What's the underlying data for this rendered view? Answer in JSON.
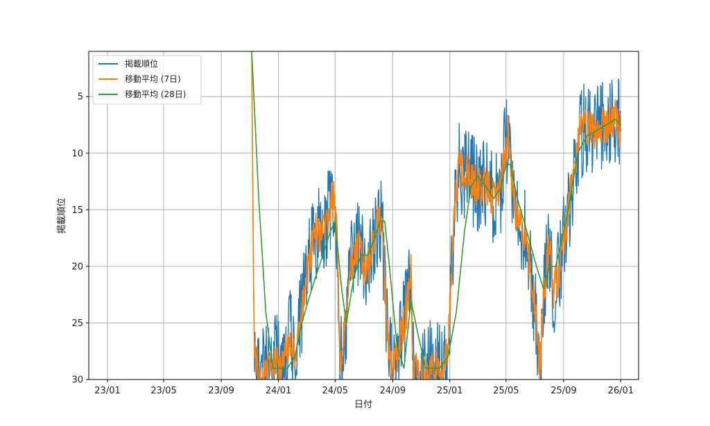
{
  "chart_data": {
    "type": "line",
    "title": "",
    "xlabel": "日付",
    "ylabel": "掲載順位",
    "x_ticks": [
      "23/01",
      "23/05",
      "23/09",
      "24/01",
      "24/05",
      "24/09",
      "25/01",
      "25/05",
      "25/09",
      "26/01"
    ],
    "x_tick_dates": [
      "2023-01-01",
      "2023-05-01",
      "2023-09-01",
      "2024-01-01",
      "2024-05-01",
      "2024-09-01",
      "2025-01-01",
      "2025-05-01",
      "2025-09-01",
      "2026-01-01"
    ],
    "xlim": [
      "2022-11-22",
      "2026-02-08"
    ],
    "y_ticks": [
      5,
      10,
      15,
      20,
      25,
      30
    ],
    "ylim": [
      1,
      30
    ],
    "y_inverted": true,
    "grid": true,
    "legend_position": "top-left",
    "series": [
      {
        "name": "掲載順位",
        "color": "#1f77b4",
        "noise": 4.2,
        "points": [
          [
            "2023-11-05",
            1
          ],
          [
            "2023-11-10",
            27
          ],
          [
            "2023-11-20",
            30
          ],
          [
            "2023-12-10",
            29
          ],
          [
            "2023-12-25",
            28
          ],
          [
            "2024-01-10",
            29
          ],
          [
            "2024-01-25",
            26
          ],
          [
            "2024-02-05",
            28
          ],
          [
            "2024-02-20",
            24
          ],
          [
            "2024-03-05",
            20
          ],
          [
            "2024-03-20",
            17
          ],
          [
            "2024-04-05",
            17
          ],
          [
            "2024-04-20",
            15
          ],
          [
            "2024-04-28",
            14
          ],
          [
            "2024-05-05",
            17
          ],
          [
            "2024-05-12",
            29
          ],
          [
            "2024-05-20",
            26
          ],
          [
            "2024-06-05",
            20
          ],
          [
            "2024-06-20",
            18
          ],
          [
            "2024-07-05",
            21
          ],
          [
            "2024-07-20",
            18
          ],
          [
            "2024-08-01",
            16
          ],
          [
            "2024-08-10",
            17
          ],
          [
            "2024-08-20",
            26
          ],
          [
            "2024-09-01",
            29
          ],
          [
            "2024-09-15",
            27
          ],
          [
            "2024-10-01",
            24
          ],
          [
            "2024-10-10",
            20
          ],
          [
            "2024-10-15",
            29
          ],
          [
            "2024-11-01",
            30
          ],
          [
            "2024-11-20",
            29
          ],
          [
            "2024-12-10",
            29
          ],
          [
            "2024-12-28",
            28
          ],
          [
            "2025-01-05",
            20
          ],
          [
            "2025-01-12",
            15
          ],
          [
            "2025-01-20",
            11
          ],
          [
            "2025-02-10",
            12
          ],
          [
            "2025-03-01",
            13
          ],
          [
            "2025-03-20",
            13
          ],
          [
            "2025-04-05",
            14
          ],
          [
            "2025-04-20",
            13
          ],
          [
            "2025-04-28",
            10
          ],
          [
            "2025-05-05",
            8
          ],
          [
            "2025-05-12",
            12
          ],
          [
            "2025-05-20",
            15
          ],
          [
            "2025-06-10",
            17
          ],
          [
            "2025-06-25",
            21
          ],
          [
            "2025-07-05",
            25
          ],
          [
            "2025-07-12",
            29
          ],
          [
            "2025-07-20",
            23
          ],
          [
            "2025-08-01",
            18
          ],
          [
            "2025-08-10",
            22
          ],
          [
            "2025-08-20",
            21
          ],
          [
            "2025-09-05",
            17
          ],
          [
            "2025-09-15",
            14
          ],
          [
            "2025-09-25",
            11
          ],
          [
            "2025-10-05",
            8
          ],
          [
            "2025-10-20",
            8
          ],
          [
            "2025-11-10",
            8
          ],
          [
            "2025-12-01",
            7.5
          ],
          [
            "2025-12-20",
            7
          ],
          [
            "2026-01-01",
            8
          ]
        ]
      },
      {
        "name": "移動平均 (7日)",
        "color": "#ff7f0e",
        "noise": 1.8,
        "points": [
          [
            "2023-11-05",
            1
          ],
          [
            "2023-11-10",
            27
          ],
          [
            "2023-11-20",
            30
          ],
          [
            "2023-12-10",
            29
          ],
          [
            "2023-12-25",
            28
          ],
          [
            "2024-01-10",
            29
          ],
          [
            "2024-01-25",
            26
          ],
          [
            "2024-02-05",
            28
          ],
          [
            "2024-02-20",
            24
          ],
          [
            "2024-03-05",
            20
          ],
          [
            "2024-03-20",
            17
          ],
          [
            "2024-04-05",
            17
          ],
          [
            "2024-04-20",
            15
          ],
          [
            "2024-04-28",
            14
          ],
          [
            "2024-05-05",
            17
          ],
          [
            "2024-05-12",
            29
          ],
          [
            "2024-05-20",
            26
          ],
          [
            "2024-06-05",
            20
          ],
          [
            "2024-06-20",
            18
          ],
          [
            "2024-07-05",
            21
          ],
          [
            "2024-07-20",
            18
          ],
          [
            "2024-08-01",
            16
          ],
          [
            "2024-08-10",
            17
          ],
          [
            "2024-08-20",
            26
          ],
          [
            "2024-09-01",
            29
          ],
          [
            "2024-09-15",
            27
          ],
          [
            "2024-10-01",
            24
          ],
          [
            "2024-10-10",
            20
          ],
          [
            "2024-10-15",
            29
          ],
          [
            "2024-11-01",
            30
          ],
          [
            "2024-11-20",
            29
          ],
          [
            "2024-12-10",
            29
          ],
          [
            "2024-12-28",
            28
          ],
          [
            "2025-01-05",
            20
          ],
          [
            "2025-01-12",
            15
          ],
          [
            "2025-01-20",
            11
          ],
          [
            "2025-02-10",
            12
          ],
          [
            "2025-03-01",
            13
          ],
          [
            "2025-03-20",
            13
          ],
          [
            "2025-04-05",
            14
          ],
          [
            "2025-04-20",
            13
          ],
          [
            "2025-04-28",
            10
          ],
          [
            "2025-05-05",
            8
          ],
          [
            "2025-05-12",
            12
          ],
          [
            "2025-05-20",
            15
          ],
          [
            "2025-06-10",
            17
          ],
          [
            "2025-06-25",
            21
          ],
          [
            "2025-07-05",
            25
          ],
          [
            "2025-07-12",
            29
          ],
          [
            "2025-07-20",
            23
          ],
          [
            "2025-08-01",
            18
          ],
          [
            "2025-08-10",
            22
          ],
          [
            "2025-08-20",
            21
          ],
          [
            "2025-09-05",
            17
          ],
          [
            "2025-09-15",
            14
          ],
          [
            "2025-09-25",
            11
          ],
          [
            "2025-10-05",
            8
          ],
          [
            "2025-10-20",
            8
          ],
          [
            "2025-11-10",
            8
          ],
          [
            "2025-12-01",
            7.5
          ],
          [
            "2025-12-20",
            7
          ],
          [
            "2026-01-01",
            8
          ]
        ]
      },
      {
        "name": "移動平均 (28日)",
        "color": "#2ca02c",
        "noise": 0,
        "points": [
          [
            "2023-11-05",
            1
          ],
          [
            "2023-11-20",
            14
          ],
          [
            "2023-12-05",
            24
          ],
          [
            "2023-12-20",
            29
          ],
          [
            "2024-01-05",
            29
          ],
          [
            "2024-01-20",
            29
          ],
          [
            "2024-02-05",
            28
          ],
          [
            "2024-02-20",
            25
          ],
          [
            "2024-03-05",
            23
          ],
          [
            "2024-03-20",
            21
          ],
          [
            "2024-04-05",
            19
          ],
          [
            "2024-04-20",
            17
          ],
          [
            "2024-05-01",
            16
          ],
          [
            "2024-05-15",
            22
          ],
          [
            "2024-05-25",
            25
          ],
          [
            "2024-06-10",
            21
          ],
          [
            "2024-06-25",
            19
          ],
          [
            "2024-07-10",
            19
          ],
          [
            "2024-07-25",
            17.5
          ],
          [
            "2024-08-05",
            16
          ],
          [
            "2024-08-15",
            16
          ],
          [
            "2024-08-25",
            20
          ],
          [
            "2024-09-10",
            27
          ],
          [
            "2024-09-25",
            29
          ],
          [
            "2024-10-10",
            23
          ],
          [
            "2024-10-25",
            26
          ],
          [
            "2024-11-10",
            29
          ],
          [
            "2024-11-25",
            29
          ],
          [
            "2024-12-10",
            29
          ],
          [
            "2024-12-28",
            28
          ],
          [
            "2025-01-15",
            24
          ],
          [
            "2025-02-01",
            17
          ],
          [
            "2025-02-15",
            13
          ],
          [
            "2025-03-01",
            12
          ],
          [
            "2025-03-20",
            13
          ],
          [
            "2025-04-05",
            14
          ],
          [
            "2025-04-20",
            13
          ],
          [
            "2025-05-01",
            11
          ],
          [
            "2025-05-10",
            11
          ],
          [
            "2025-05-25",
            14
          ],
          [
            "2025-06-15",
            17
          ],
          [
            "2025-07-05",
            20
          ],
          [
            "2025-07-20",
            22
          ],
          [
            "2025-08-01",
            20
          ],
          [
            "2025-08-15",
            20
          ],
          [
            "2025-09-01",
            17
          ],
          [
            "2025-09-15",
            14
          ],
          [
            "2025-10-01",
            10
          ],
          [
            "2025-10-20",
            8.5
          ],
          [
            "2025-11-10",
            8
          ],
          [
            "2025-12-01",
            7.5
          ],
          [
            "2025-12-20",
            7
          ],
          [
            "2026-01-01",
            7.5
          ]
        ]
      }
    ]
  }
}
